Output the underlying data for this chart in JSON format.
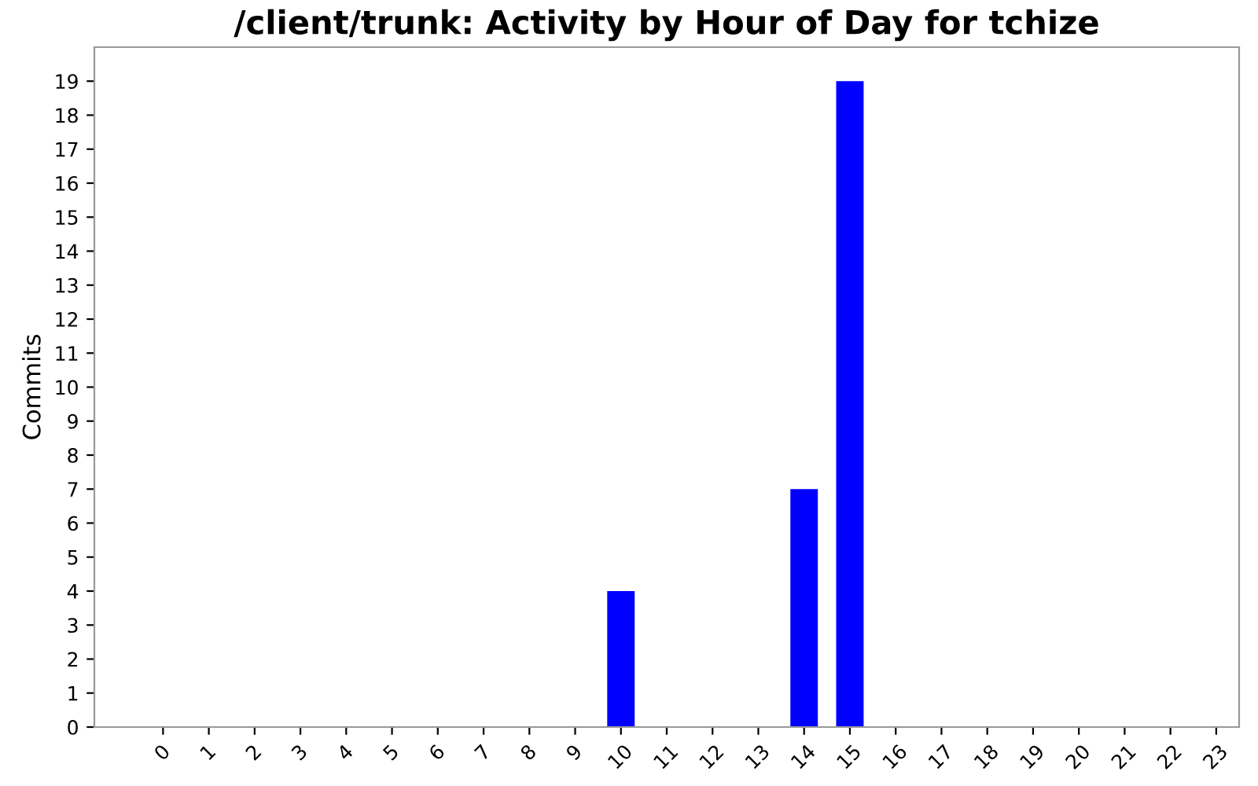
{
  "chart_data": {
    "type": "bar",
    "title": "/client/trunk: Activity by Hour of Day for tchize",
    "ylabel": "Commits",
    "categories": [
      "0",
      "1",
      "2",
      "3",
      "4",
      "5",
      "6",
      "7",
      "8",
      "9",
      "10",
      "11",
      "12",
      "13",
      "14",
      "15",
      "16",
      "17",
      "18",
      "19",
      "20",
      "21",
      "22",
      "23"
    ],
    "values": [
      0,
      0,
      0,
      0,
      0,
      0,
      0,
      0,
      0,
      0,
      4,
      0,
      0,
      0,
      7,
      19,
      0,
      0,
      0,
      0,
      0,
      0,
      0,
      0
    ],
    "color": "#0000ff",
    "ylim": [
      0,
      20
    ],
    "yticks": [
      0,
      1,
      2,
      3,
      4,
      5,
      6,
      7,
      8,
      9,
      10,
      11,
      12,
      13,
      14,
      15,
      16,
      17,
      18,
      19
    ],
    "grid": false
  }
}
